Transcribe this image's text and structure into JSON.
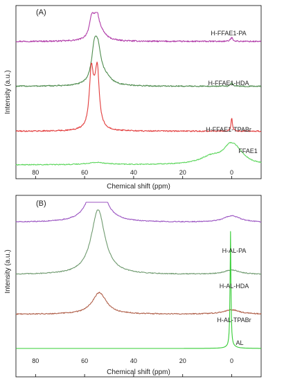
{
  "figure": {
    "type": "stacked NMR spectra"
  },
  "chart_data": [
    {
      "type": "line",
      "panel_label": "(A)",
      "xlabel": "Chemical shift (ppm)",
      "ylabel": "Intensity (a.u.)",
      "x_reversed": true,
      "xlim": [
        -12,
        88
      ],
      "x_ticks": [
        80,
        60,
        40,
        20,
        0
      ],
      "grid": false,
      "legend": "labels at right end of each trace",
      "series": [
        {
          "name": "H-FFAE1-PA",
          "color": "#b03aa8",
          "offset": 3.3,
          "baseline_noise": 0.018,
          "peaks": [
            {
              "center": 57,
              "height": 0.55,
              "width": 1.3
            },
            {
              "center": 55,
              "height": 0.55,
              "width": 1.3
            },
            {
              "center": 53,
              "height": 0.15,
              "width": 2.5
            },
            {
              "center": 0,
              "height": 0.1,
              "width": 0.6
            }
          ]
        },
        {
          "name": "H-FFAE1-HDA",
          "color": "#4d8b4d",
          "offset": 2.1,
          "baseline_noise": 0.016,
          "peaks": [
            {
              "center": 56,
              "height": 0.85,
              "width": 1.4
            },
            {
              "center": 54.5,
              "height": 0.75,
              "width": 1.5
            },
            {
              "center": 51.5,
              "height": 0.2,
              "width": 3
            },
            {
              "center": 0,
              "height": 0.09,
              "width": 0.6
            }
          ]
        },
        {
          "name": "H-FFAE1-TPABr",
          "color": "#e23a3a",
          "offset": 0.9,
          "baseline_noise": 0.016,
          "peaks": [
            {
              "center": 57.3,
              "height": 1.3,
              "width": 0.9
            },
            {
              "center": 54.8,
              "height": 1.3,
              "width": 0.9
            },
            {
              "center": 56,
              "height": 0.6,
              "width": 1.6
            },
            {
              "center": 0,
              "height": 0.35,
              "width": 0.35
            }
          ]
        },
        {
          "name": "FFAE1",
          "color": "#5cd65c",
          "offset": 0.0,
          "baseline_noise": 0.012,
          "peaks": [
            {
              "center": 55,
              "height": 0.06,
              "width": 5
            },
            {
              "center": 8,
              "height": 0.22,
              "width": 6
            },
            {
              "center": 1,
              "height": 0.35,
              "width": 3
            },
            {
              "center": -1.5,
              "height": 0.2,
              "width": 2.5
            },
            {
              "center": -4,
              "height": 0.12,
              "width": 3.5
            }
          ]
        }
      ]
    },
    {
      "type": "line",
      "panel_label": "(B)",
      "xlabel": "Chemical shift (ppm)",
      "ylabel": "Intensity (a.u.)",
      "x_reversed": true,
      "xlim": [
        -12,
        88
      ],
      "x_ticks": [
        80,
        60,
        40,
        20,
        0
      ],
      "grid": false,
      "legend": "labels at right end of each trace",
      "series": [
        {
          "name": "H-AL-PA",
          "color": "#9b55c2",
          "offset": 3.5,
          "baseline_noise": 0.012,
          "peaks": [
            {
              "center": 55,
              "height": 1.6,
              "width": 3.2
            },
            {
              "center": 0,
              "height": 0.18,
              "width": 4
            }
          ]
        },
        {
          "name": "H-AL-HDA",
          "color": "#6f9a6f",
          "offset": 2.05,
          "baseline_noise": 0.012,
          "peaks": [
            {
              "center": 54.5,
              "height": 1.8,
              "width": 3.4
            },
            {
              "center": 0,
              "height": 0.12,
              "width": 4
            }
          ]
        },
        {
          "name": "H-AL-TPABr",
          "color": "#b0604a",
          "offset": 0.95,
          "baseline_noise": 0.014,
          "peaks": [
            {
              "center": 54,
              "height": 0.6,
              "width": 3.5
            },
            {
              "center": 0,
              "height": 0.12,
              "width": 4
            }
          ]
        },
        {
          "name": "AL",
          "color": "#33cc33",
          "offset": 0.0,
          "baseline_noise": 0.0,
          "peaks": [
            {
              "center": 0.5,
              "height": 3.2,
              "width": 0.22
            },
            {
              "center": 0,
              "height": 0.05,
              "width": 2
            }
          ]
        }
      ]
    }
  ]
}
